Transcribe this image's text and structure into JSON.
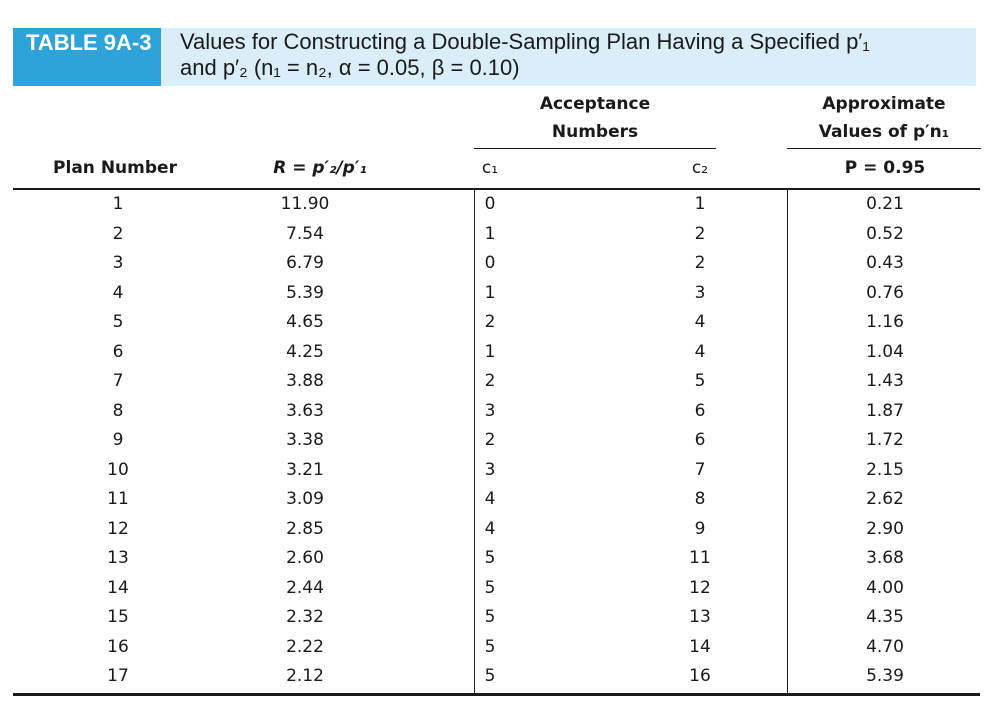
{
  "header": {
    "table_label": "TABLE 9A-3",
    "caption_line1": "Values for Constructing a Double-Sampling Plan Having a Specified p′₁",
    "caption_line2": "and p′₂ (n₁ = n₂, α = 0.05, β = 0.10)"
  },
  "group_headers": {
    "acceptance_line1": "Acceptance",
    "acceptance_line2": "Numbers",
    "approx_line1": "Approximate",
    "approx_line2": "Values of p′n₁"
  },
  "columns": {
    "plan_number": "Plan Number",
    "ratio": "R = p′₂/p′₁",
    "c1": "c₁",
    "c2": "c₂",
    "p95": "P = 0.95"
  },
  "rows": [
    {
      "plan": "1",
      "r": "11.90",
      "c1": "0",
      "c2": "1",
      "pn": "0.21"
    },
    {
      "plan": "2",
      "r": "7.54",
      "c1": "1",
      "c2": "2",
      "pn": "0.52"
    },
    {
      "plan": "3",
      "r": "6.79",
      "c1": "0",
      "c2": "2",
      "pn": "0.43"
    },
    {
      "plan": "4",
      "r": "5.39",
      "c1": "1",
      "c2": "3",
      "pn": "0.76"
    },
    {
      "plan": "5",
      "r": "4.65",
      "c1": "2",
      "c2": "4",
      "pn": "1.16"
    },
    {
      "plan": "6",
      "r": "4.25",
      "c1": "1",
      "c2": "4",
      "pn": "1.04"
    },
    {
      "plan": "7",
      "r": "3.88",
      "c1": "2",
      "c2": "5",
      "pn": "1.43"
    },
    {
      "plan": "8",
      "r": "3.63",
      "c1": "3",
      "c2": "6",
      "pn": "1.87"
    },
    {
      "plan": "9",
      "r": "3.38",
      "c1": "2",
      "c2": "6",
      "pn": "1.72"
    },
    {
      "plan": "10",
      "r": "3.21",
      "c1": "3",
      "c2": "7",
      "pn": "2.15"
    },
    {
      "plan": "11",
      "r": "3.09",
      "c1": "4",
      "c2": "8",
      "pn": "2.62"
    },
    {
      "plan": "12",
      "r": "2.85",
      "c1": "4",
      "c2": "9",
      "pn": "2.90"
    },
    {
      "plan": "13",
      "r": "2.60",
      "c1": "5",
      "c2": "11",
      "pn": "3.68"
    },
    {
      "plan": "14",
      "r": "2.44",
      "c1": "5",
      "c2": "12",
      "pn": "4.00"
    },
    {
      "plan": "15",
      "r": "2.32",
      "c1": "5",
      "c2": "13",
      "pn": "4.35"
    },
    {
      "plan": "16",
      "r": "2.22",
      "c1": "5",
      "c2": "14",
      "pn": "4.70"
    },
    {
      "plan": "17",
      "r": "2.12",
      "c1": "5",
      "c2": "16",
      "pn": "5.39"
    }
  ]
}
